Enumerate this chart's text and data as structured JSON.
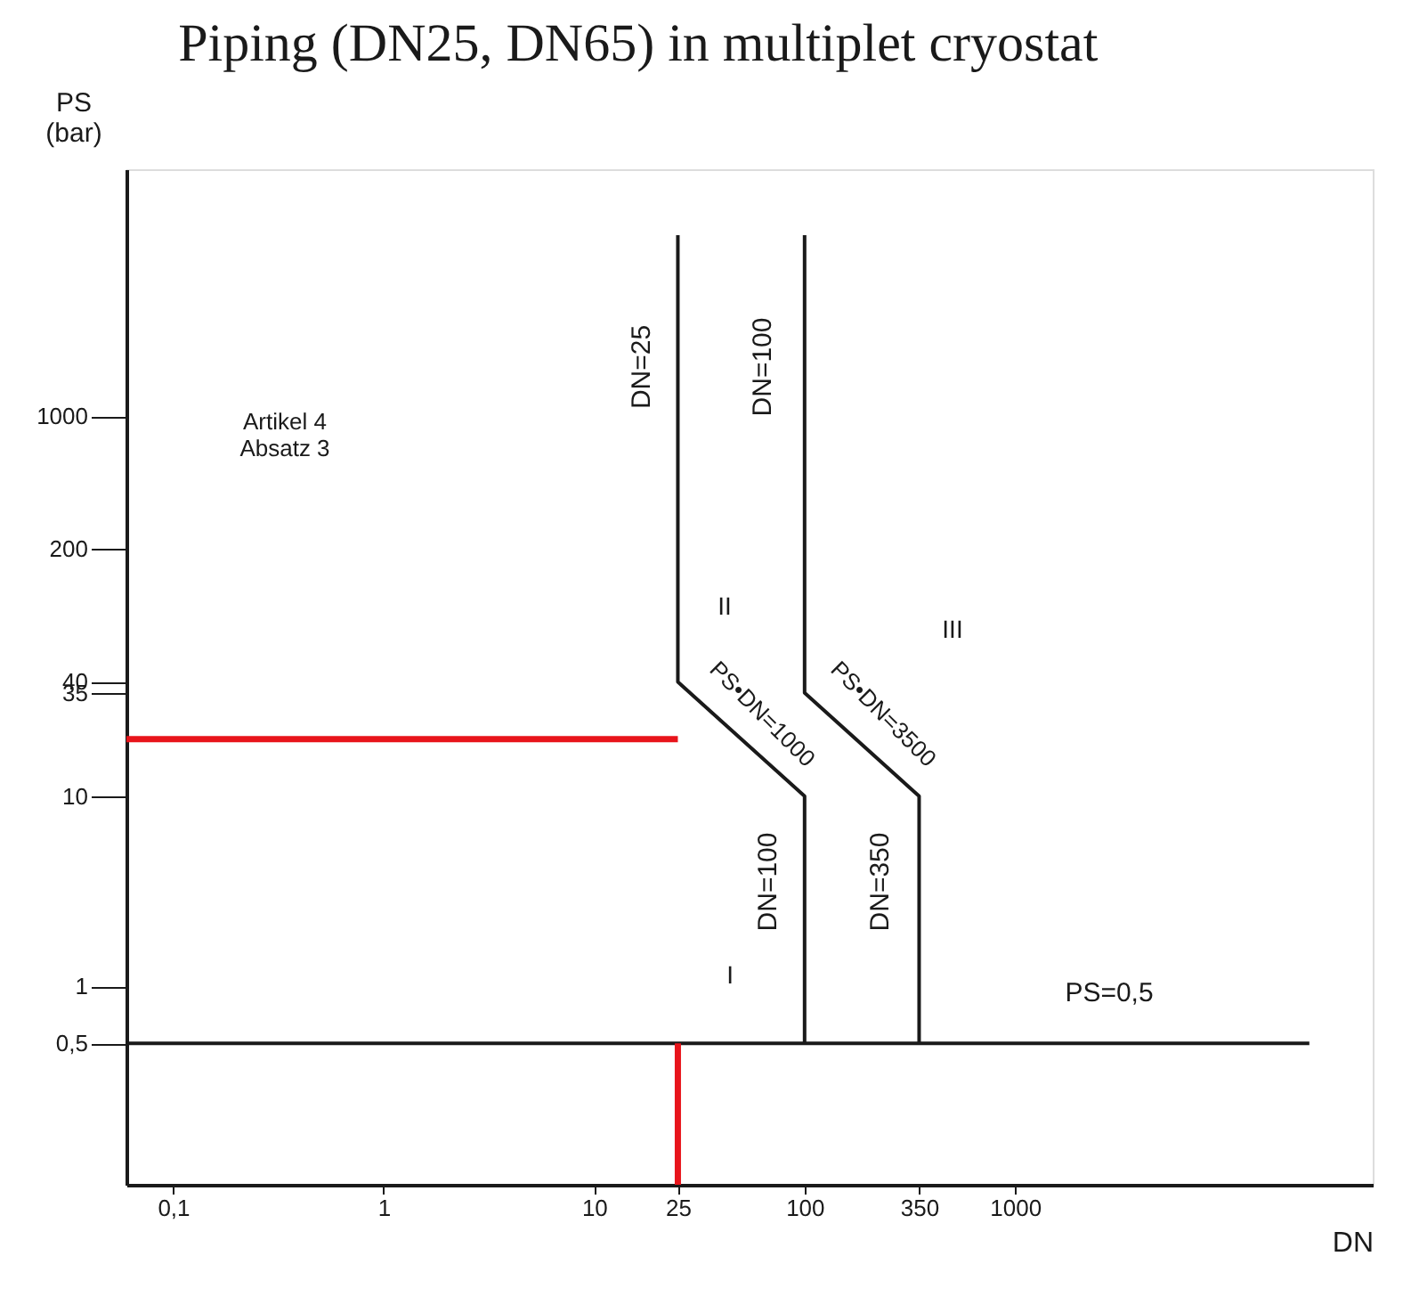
{
  "chart_data": {
    "type": "line",
    "title": "Piping (DN25, DN65) in multiplet cryostat",
    "xlabel": "DN",
    "ylabel": "PS\n(bar)",
    "log": "xy",
    "grid": false,
    "marker": "none",
    "xlim": [
      0.06,
      50000
    ],
    "ylim": [
      0.09,
      20000
    ],
    "xticks": [
      {
        "value": 0.1,
        "label": "0,1"
      },
      1,
      10,
      25,
      100,
      350,
      1000
    ],
    "yticks": [
      {
        "value": 0.5,
        "label": "0,5"
      },
      1,
      10,
      35,
      40,
      200,
      1000
    ],
    "series": [
      {
        "color": "#1a1a1a",
        "line_style": "solid",
        "x": [
          25,
          25,
          100,
          100
        ],
        "values": [
          9000,
          40,
          10,
          0.5
        ]
      },
      {
        "color": "#1a1a1a",
        "line_style": "solid",
        "x": [
          100,
          100,
          350,
          350
        ],
        "values": [
          9000,
          35,
          10,
          0.5
        ]
      },
      {
        "color": "#1a1a1a",
        "line_style": "solid",
        "x": [
          0.06,
          25000
        ],
        "values": [
          0.5,
          0.5
        ]
      },
      {
        "color": "#e8141b",
        "line_style": "solid",
        "x": [
          0.06,
          25
        ],
        "values": [
          20,
          20
        ]
      },
      {
        "color": "#e8141b",
        "line_style": "solid",
        "x": [
          25,
          25
        ],
        "values": [
          0.09,
          0.5
        ]
      }
    ],
    "annotations": [
      "Artikel 4\nAbsatz 3",
      "DN=25",
      "DN=100",
      "II",
      "III",
      "PS•DN=1000",
      "PS•DN=3500",
      "DN=100",
      "DN=350",
      "I",
      "PS=0,5"
    ]
  }
}
